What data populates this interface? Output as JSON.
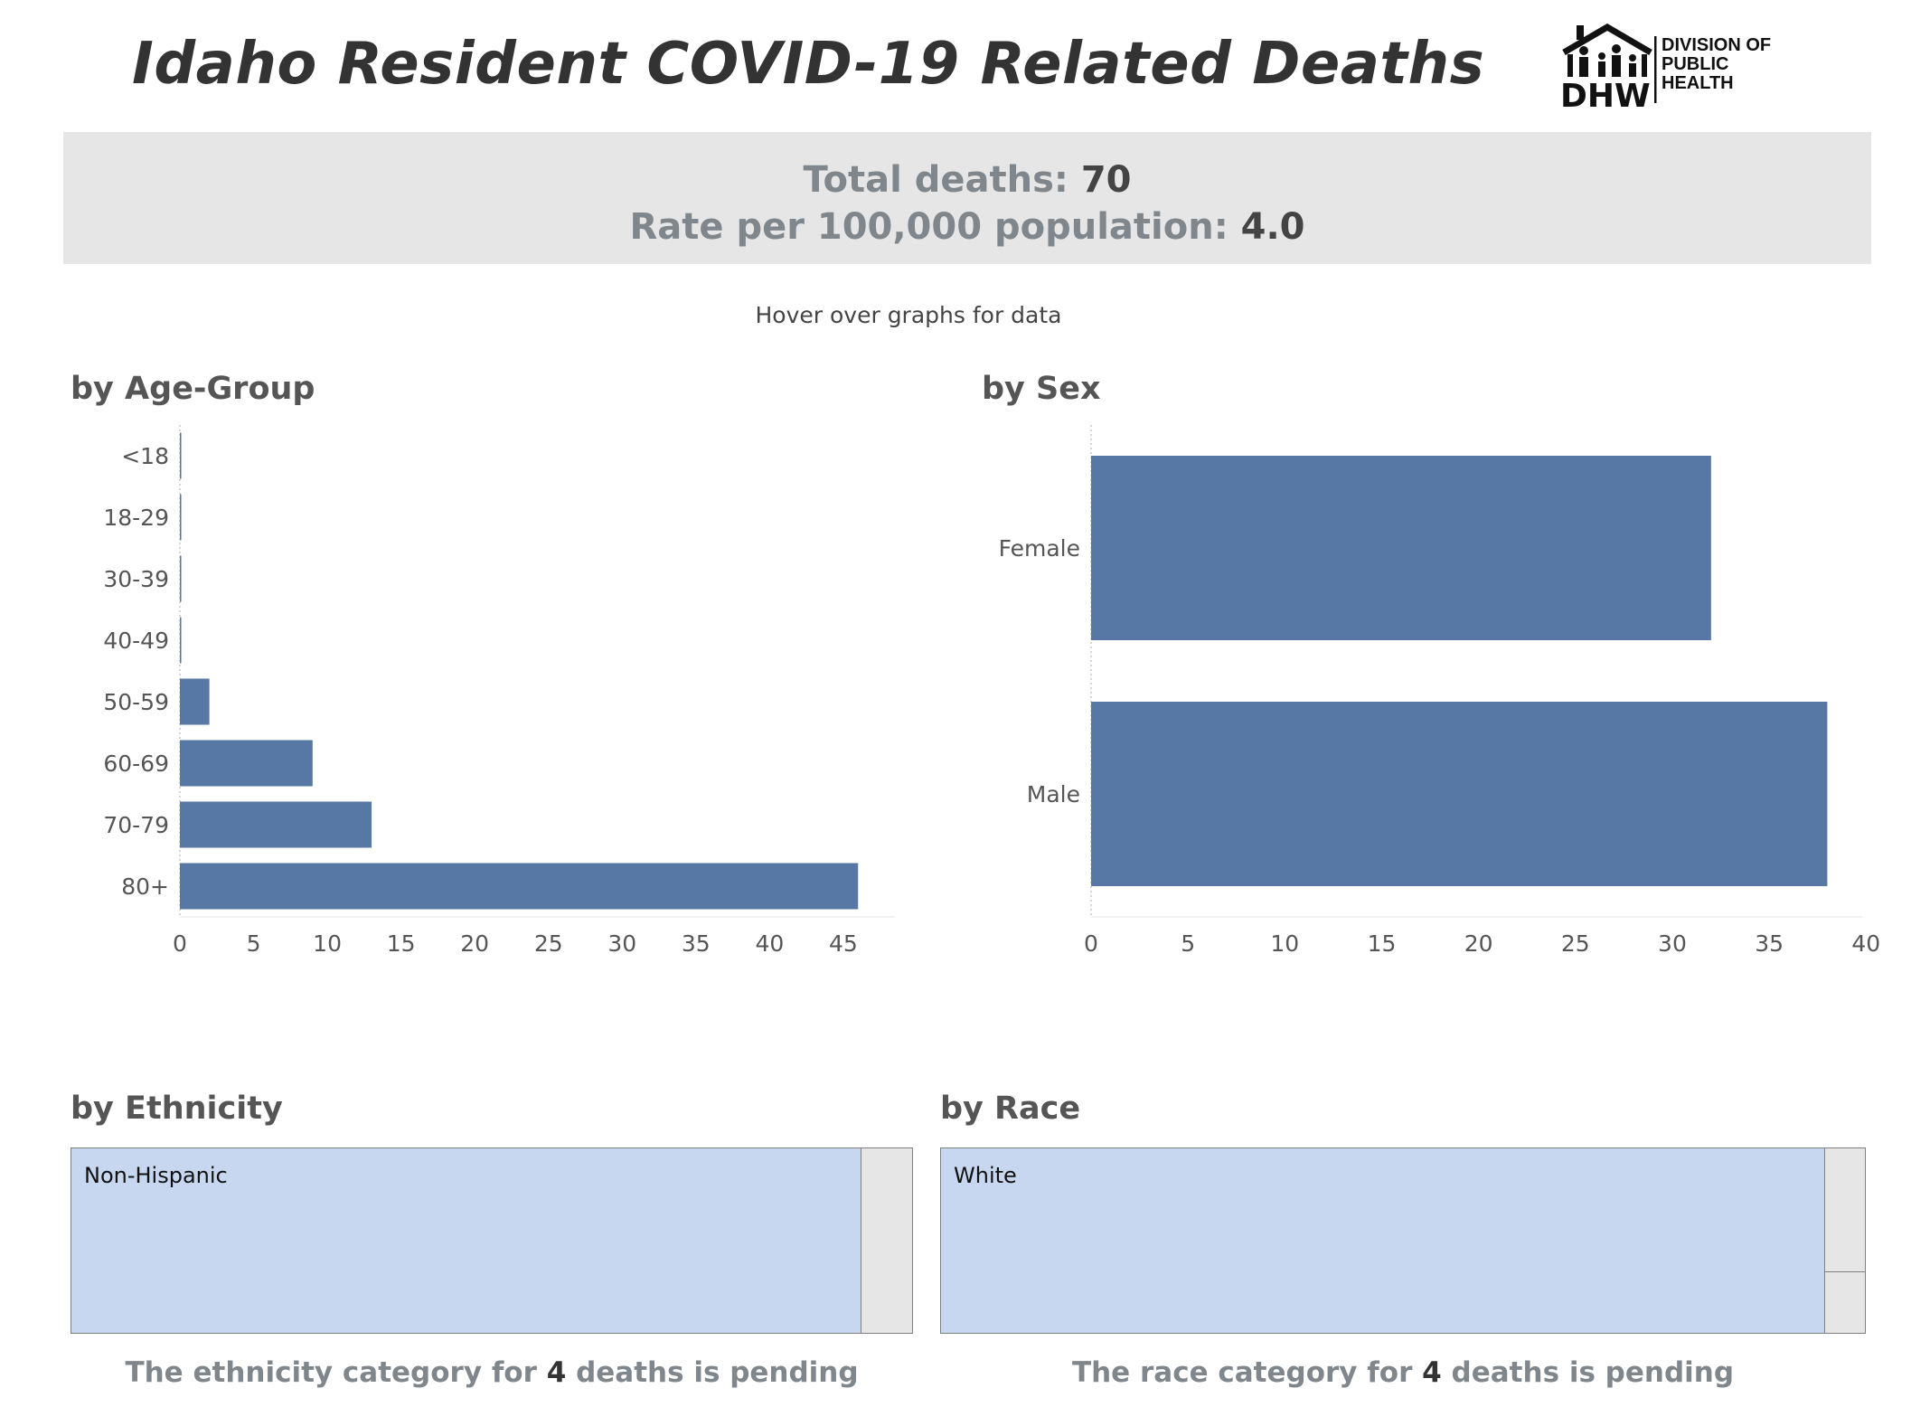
{
  "header": {
    "title": "Idaho Resident COVID-19 Related Deaths",
    "logo_text": "DHW",
    "logo_lines": [
      "DIVISION OF",
      "PUBLIC",
      "HEALTH"
    ]
  },
  "summary": {
    "total_label": "Total deaths:",
    "total_value": "70",
    "rate_label": "Rate per 100,000 population:",
    "rate_value": "4.0"
  },
  "hover_note": "Hover over graphs for data",
  "colors": {
    "bar": "#5778a4",
    "treemap_main": "#c7d7ef",
    "treemap_other": "#e6e6e6",
    "summary_bg": "#e6e6e6"
  },
  "chart_data": [
    {
      "type": "bar",
      "orientation": "horizontal",
      "title": "by Age-Group",
      "categories": [
        "<18",
        "18-29",
        "30-39",
        "40-49",
        "50-59",
        "60-69",
        "70-79",
        "80+"
      ],
      "values": [
        0,
        0,
        0,
        0,
        2,
        9,
        13,
        46
      ],
      "ticks": [
        0,
        5,
        10,
        15,
        20,
        25,
        30,
        35,
        40,
        45
      ],
      "xlim": [
        0,
        48.5
      ]
    },
    {
      "type": "bar",
      "orientation": "horizontal",
      "title": "by Sex",
      "categories": [
        "Female",
        "Male"
      ],
      "values": [
        32,
        38
      ],
      "ticks": [
        0,
        5,
        10,
        15,
        20,
        25,
        30,
        35,
        40
      ],
      "xlim": [
        0,
        39.8
      ]
    }
  ],
  "ethnicity": {
    "title": "by Ethnicity",
    "main_label": "Non-Hispanic",
    "pending_prefix": "The ethnicity category for",
    "pending_count": "4",
    "pending_suffix": "deaths is pending"
  },
  "race": {
    "title": "by Race",
    "main_label": "White",
    "pending_prefix": "The race category for",
    "pending_count": "4",
    "pending_suffix": "deaths is pending"
  }
}
